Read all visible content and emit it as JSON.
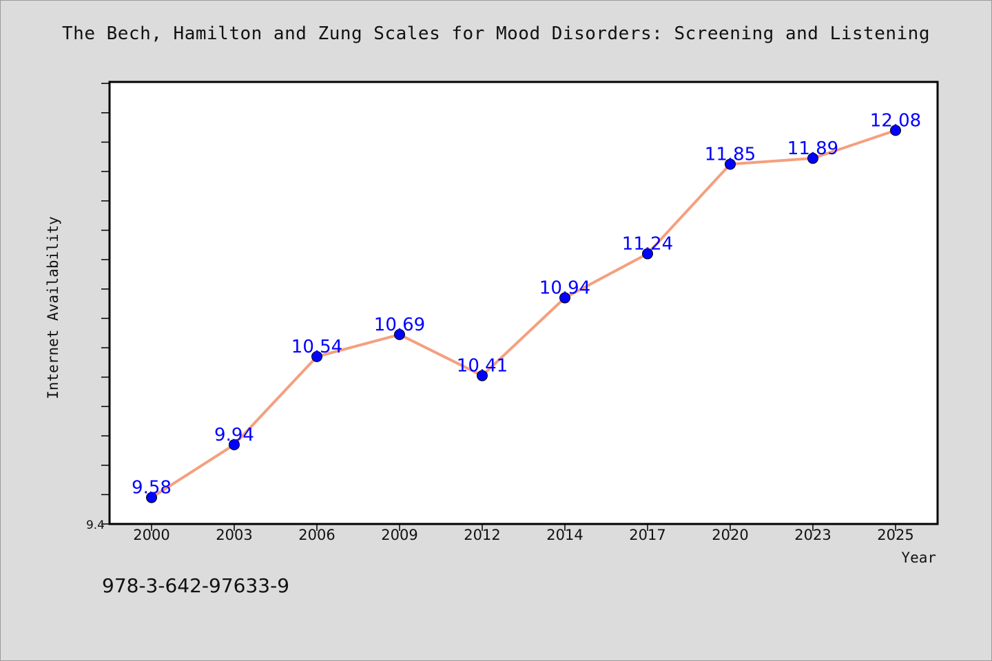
{
  "chart_data": {
    "type": "line",
    "title": "The Bech, Hamilton and Zung Scales for Mood Disorders: Screening and Listening",
    "xlabel": "Year",
    "ylabel": "Internet Availability",
    "categories": [
      "2000",
      "2003",
      "2006",
      "2009",
      "2012",
      "2014",
      "2017",
      "2020",
      "2023",
      "2025"
    ],
    "series": [
      {
        "values": [
          9.58,
          9.94,
          10.54,
          10.69,
          10.41,
          10.94,
          11.24,
          11.85,
          11.89,
          12.08
        ],
        "data_labels": [
          "9.58",
          "9.94",
          "10.54",
          "10.69",
          "10.41",
          "10.94",
          "11.24",
          "11.85",
          "11.89",
          "12.08"
        ]
      }
    ],
    "y_tick_labels": [
      "9.4"
    ],
    "ylim": [
      9.4,
      12.41
    ],
    "grid": false,
    "legend": "none",
    "colors": {
      "line": "#f4a07f",
      "marker": "#0000ff",
      "label": "#0000ff",
      "plot_bg": "#ffffff",
      "page_bg": "#dcdcdc"
    }
  },
  "footer": {
    "isbn": "978-3-642-97633-9"
  }
}
